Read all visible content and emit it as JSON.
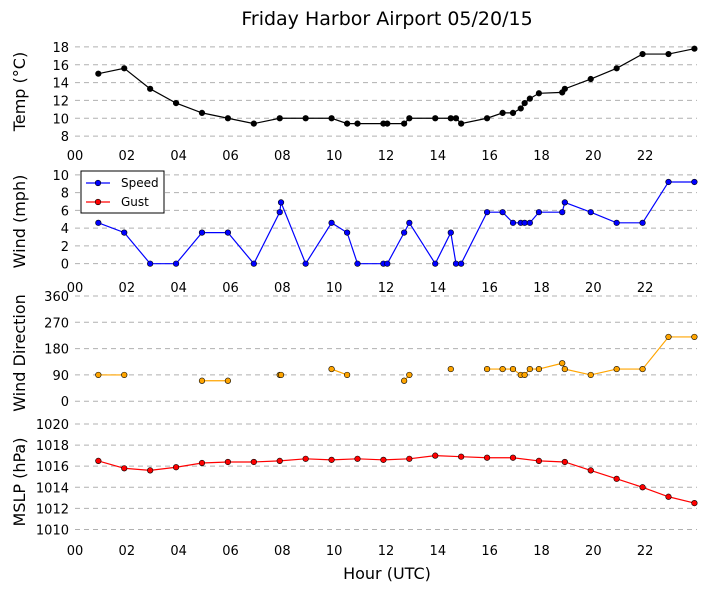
{
  "chart_data": {
    "type": "line",
    "title": "Friday Harbor Airport 05/20/15",
    "xlabel": "Hour (UTC)",
    "x_ticks": [
      "00",
      "02",
      "04",
      "06",
      "08",
      "10",
      "12",
      "14",
      "16",
      "18",
      "20",
      "22"
    ],
    "xlim": [
      0,
      24
    ],
    "grid": "horizontal-dashed",
    "panels": [
      {
        "ylabel": "Temp ($^\\circ$C)",
        "ylabel_display": "Temp (°C)",
        "ylim": [
          7,
          19
        ],
        "y_ticks": [
          8,
          10,
          12,
          14,
          16,
          18
        ],
        "show_x_tick_labels": true,
        "series": [
          {
            "color": "#000000",
            "points": [
              [
                0.9,
                15.0
              ],
              [
                1.9,
                15.6
              ],
              [
                2.9,
                13.3
              ],
              [
                3.9,
                11.7
              ],
              [
                4.9,
                10.6
              ],
              [
                5.9,
                10.0
              ],
              [
                6.9,
                9.4
              ],
              [
                7.9,
                10.0
              ],
              [
                8.9,
                10.0
              ],
              [
                9.9,
                10.0
              ],
              [
                10.5,
                9.4
              ],
              [
                10.9,
                9.4
              ],
              [
                11.9,
                9.4
              ],
              [
                12.05,
                9.4
              ],
              [
                12.7,
                9.4
              ],
              [
                12.9,
                10.0
              ],
              [
                13.9,
                10.0
              ],
              [
                14.5,
                10.0
              ],
              [
                14.7,
                10.0
              ],
              [
                14.9,
                9.4
              ],
              [
                15.9,
                10.0
              ],
              [
                16.5,
                10.6
              ],
              [
                16.9,
                10.6
              ],
              [
                17.2,
                11.1
              ],
              [
                17.35,
                11.7
              ],
              [
                17.55,
                12.2
              ],
              [
                17.9,
                12.8
              ],
              [
                18.8,
                12.9
              ],
              [
                18.9,
                13.3
              ],
              [
                19.9,
                14.4
              ],
              [
                20.9,
                15.6
              ],
              [
                21.9,
                17.2
              ],
              [
                22.9,
                17.2
              ],
              [
                23.9,
                17.8
              ]
            ]
          }
        ]
      },
      {
        "ylabel": "Wind (mph)",
        "ylim": [
          -1.5,
          11
        ],
        "y_ticks": [
          0,
          2,
          4,
          6,
          8,
          10
        ],
        "show_x_tick_labels": true,
        "legend": "top-left",
        "series": [
          {
            "name": "Speed",
            "color": "#0000ff",
            "marker_color": "#0000ff",
            "points": [
              [
                0.9,
                4.6
              ],
              [
                1.9,
                3.5
              ],
              [
                2.9,
                0
              ],
              [
                3.9,
                0
              ],
              [
                4.9,
                3.5
              ],
              [
                5.9,
                3.5
              ],
              [
                6.9,
                0
              ],
              [
                7.9,
                5.8
              ],
              [
                7.95,
                6.9
              ],
              [
                8.9,
                0
              ],
              [
                9.9,
                4.6
              ],
              [
                10.5,
                3.5
              ],
              [
                10.9,
                0
              ],
              [
                11.9,
                0
              ],
              [
                12.05,
                0
              ],
              [
                12.7,
                3.5
              ],
              [
                12.9,
                4.6
              ],
              [
                13.9,
                0
              ],
              [
                14.5,
                3.5
              ],
              [
                14.7,
                0
              ],
              [
                14.9,
                0
              ],
              [
                15.9,
                5.8
              ],
              [
                16.5,
                5.8
              ],
              [
                16.9,
                4.6
              ],
              [
                17.2,
                4.6
              ],
              [
                17.35,
                4.6
              ],
              [
                17.55,
                4.6
              ],
              [
                17.9,
                5.8
              ],
              [
                18.8,
                5.8
              ],
              [
                18.9,
                6.9
              ],
              [
                19.9,
                5.8
              ],
              [
                20.9,
                4.6
              ],
              [
                21.9,
                4.6
              ],
              [
                22.9,
                9.2
              ],
              [
                23.9,
                9.2
              ]
            ]
          },
          {
            "name": "Gust",
            "color": "#ff0000",
            "marker_color": "#ff0000",
            "points": []
          }
        ]
      },
      {
        "ylabel": "Wind Direction",
        "ylim": [
          -30,
          360
        ],
        "y_ticks": [
          0,
          90,
          180,
          270,
          360
        ],
        "show_x_tick_labels": false,
        "series": [
          {
            "color": "#ffa500",
            "marker_color": "#ffa500",
            "segments": [
              [
                [
                  0.9,
                  90
                ],
                [
                  1.9,
                  90
                ]
              ],
              [
                [
                  4.9,
                  70
                ],
                [
                  5.9,
                  70
                ]
              ],
              [
                [
                  7.9,
                  90
                ],
                [
                  7.95,
                  90
                ]
              ],
              [
                [
                  9.9,
                  110
                ],
                [
                  10.5,
                  90
                ]
              ],
              [
                [
                  12.7,
                  70
                ],
                [
                  12.9,
                  90
                ]
              ],
              [
                [
                  14.5,
                  110
                ]
              ],
              [
                [
                  15.9,
                  110
                ],
                [
                  16.5,
                  110
                ],
                [
                  16.9,
                  110
                ],
                [
                  17.2,
                  90
                ],
                [
                  17.35,
                  90
                ],
                [
                  17.55,
                  110
                ],
                [
                  17.9,
                  110
                ],
                [
                  18.8,
                  130
                ],
                [
                  18.9,
                  110
                ],
                [
                  19.9,
                  90
                ],
                [
                  20.9,
                  110
                ],
                [
                  21.9,
                  110
                ],
                [
                  22.9,
                  220
                ],
                [
                  23.9,
                  220
                ]
              ]
            ]
          }
        ]
      },
      {
        "ylabel": "MSLP (hPa)",
        "ylim": [
          1009,
          1020
        ],
        "y_ticks": [
          1010,
          1012,
          1014,
          1016,
          1018,
          1020
        ],
        "show_x_tick_labels": true,
        "series": [
          {
            "color": "#ff0000",
            "marker_color": "#ff0000",
            "points": [
              [
                0.9,
                1016.5
              ],
              [
                1.9,
                1015.8
              ],
              [
                2.9,
                1015.6
              ],
              [
                3.9,
                1015.9
              ],
              [
                4.9,
                1016.3
              ],
              [
                5.9,
                1016.4
              ],
              [
                6.9,
                1016.4
              ],
              [
                7.9,
                1016.5
              ],
              [
                8.9,
                1016.7
              ],
              [
                9.9,
                1016.6
              ],
              [
                10.9,
                1016.7
              ],
              [
                11.9,
                1016.6
              ],
              [
                12.9,
                1016.7
              ],
              [
                13.9,
                1017.0
              ],
              [
                14.9,
                1016.9
              ],
              [
                15.9,
                1016.8
              ],
              [
                16.9,
                1016.8
              ],
              [
                17.9,
                1016.5
              ],
              [
                18.9,
                1016.4
              ],
              [
                19.9,
                1015.6
              ],
              [
                20.9,
                1014.8
              ],
              [
                21.9,
                1014.0
              ],
              [
                22.9,
                1013.1
              ],
              [
                23.9,
                1012.5
              ]
            ]
          }
        ]
      }
    ]
  }
}
